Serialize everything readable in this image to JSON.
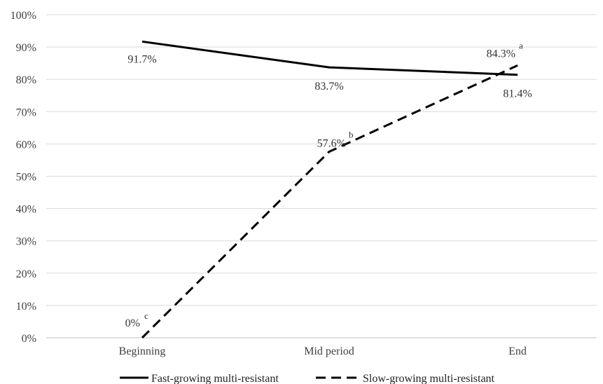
{
  "chart_data": {
    "type": "line",
    "categories": [
      "Beginning",
      "Mid period",
      "End"
    ],
    "y_ticks": [
      "0%",
      "10%",
      "20%",
      "30%",
      "40%",
      "50%",
      "60%",
      "70%",
      "80%",
      "90%",
      "100%"
    ],
    "ylim": [
      0,
      100
    ],
    "grid": true,
    "legend_position": "bottom",
    "series": [
      {
        "name": "Fast-growing multi-resistant",
        "values": [
          91.7,
          83.7,
          81.4
        ],
        "labels": [
          "91.7%",
          "83.7%",
          "81.4%"
        ],
        "superscripts": [
          "",
          "",
          ""
        ],
        "style": "solid",
        "color": "#000000"
      },
      {
        "name": "Slow-growing multi-resistant",
        "values": [
          0,
          57.6,
          84.3
        ],
        "labels": [
          "0%",
          "57.6%",
          "84.3%"
        ],
        "superscripts": [
          "c",
          "b",
          "a"
        ],
        "style": "dashed",
        "color": "#000000"
      }
    ]
  }
}
